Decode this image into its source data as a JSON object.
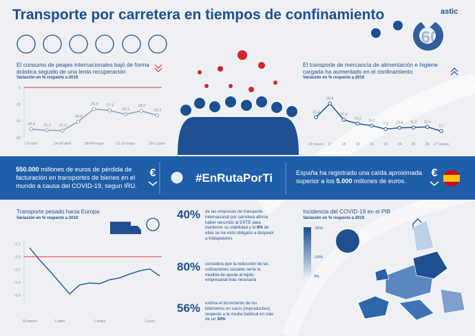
{
  "header": {
    "title": "Transporte por carretera en tiempos de confinamiento",
    "logo": "astic",
    "logo_number": "60"
  },
  "chart_data": [
    {
      "type": "line",
      "title": "El consumo de peajes internacionales bajó de forma drástica seguido de una lenta recuperación",
      "subtitle": "Variación en % respecto a 2019",
      "categories": [
        "1-6 abril",
        null,
        "14-20 abril",
        null,
        "28-04 mayo",
        null,
        "12-18 mayo",
        null,
        "26-1 junio"
      ],
      "values": [
        -49.8,
        -51.2,
        -51.5,
        -40.8,
        -25.8,
        -27.5,
        -32.1,
        -28.0,
        -33.3
      ],
      "value_labels": [
        "-49,8",
        "-51,2",
        "-51,5",
        "-40,8",
        "-25,8",
        "-27,5",
        "-32,1",
        "-28,0",
        "-33,3"
      ],
      "color": "#8d9cae",
      "ylim": [
        -60,
        0
      ],
      "yticks": [
        0,
        -20,
        -40,
        -60
      ],
      "zero_line": true,
      "zero_line_color": "#e23b3b"
    },
    {
      "type": "line",
      "title": "El transporte de mercancía de alimentación e higiene cargada ha aumentado en el confinamiento",
      "subtitle": "Variación en % respecto a 2019",
      "categories": [
        "16 marzo",
        "17",
        "18",
        "19",
        "20",
        "23",
        "24",
        "25",
        "26",
        "27 marzo"
      ],
      "values": [
        32.4,
        60.8,
        27.0,
        19.2,
        15.2,
        7.8,
        10.6,
        11.2,
        12.5,
        3.7
      ],
      "value_labels": [
        "32,4",
        "60,8",
        "27,0",
        "19,2",
        "15,2",
        "7,8",
        "10,6",
        "11,2",
        "12,5",
        "3,7"
      ],
      "color": "#1d4f91",
      "ylim": [
        0,
        70
      ]
    },
    {
      "type": "line",
      "title": "Transporte pesado hacia Europa",
      "subtitle": "Variación en % respecto a 2019",
      "categories": [
        "10 marzo",
        null,
        null,
        "1 abril",
        null,
        null,
        null,
        "1 mayo",
        null,
        null,
        null,
        null,
        "1 junio",
        null
      ],
      "values": [
        0.14,
        -0.05,
        -0.22,
        -0.4,
        -0.58,
        -0.44,
        -0.41,
        -0.42,
        -0.36,
        -0.33,
        -0.27,
        -0.22,
        -0.19,
        -0.3
      ],
      "color": "#1f5ea8",
      "ylim": [
        -0.7,
        0.3
      ],
      "yticks": [
        {
          "value": 0.2,
          "label": "0,2"
        },
        {
          "value": 0.0,
          "label": "0,0"
        },
        {
          "value": -0.2,
          "label": "-0,2"
        },
        {
          "value": -0.4,
          "label": "-0,4"
        },
        {
          "value": -0.6,
          "label": "-0,6"
        }
      ],
      "zero_line": true,
      "zero_line_color": "#e23b3b"
    }
  ],
  "banner": {
    "left": [
      "550.000",
      " millones de euros de pérdida de facturación en transportes de bienes en el mundo a causa del COVID-19, segun IRU."
    ],
    "hashtag": "#EnRutaPorTi",
    "right": [
      "España ha registrado una caída aproximada superior a los ",
      "5.000",
      " millones de euros."
    ]
  },
  "stats": [
    {
      "number": "40%",
      "parts": [
        "de las empresas de transporte internacional por carretera afirma haber recurrido al ERTE para mantener su viabilidad y el ",
        "8%",
        " de ellas se ha visto obligado a despedir a trabajadores"
      ]
    },
    {
      "number": "80%",
      "parts": [
        "considera que la reducción de las cotizaciones sociales sería la medida de ayuda al tejido empresarial más necesaria"
      ]
    },
    {
      "number": "56%",
      "parts": [
        "estima el incremento de los kilómetros en vacío (improductivo) respecto a la media habitual en más de un ",
        "30%"
      ]
    }
  ],
  "map": {
    "title": "Incidencia del COVID-19 en el PIB",
    "subtitle": "Variación en % respecto a 2019",
    "legend": [
      "-25%",
      "-10%",
      "0%"
    ]
  }
}
